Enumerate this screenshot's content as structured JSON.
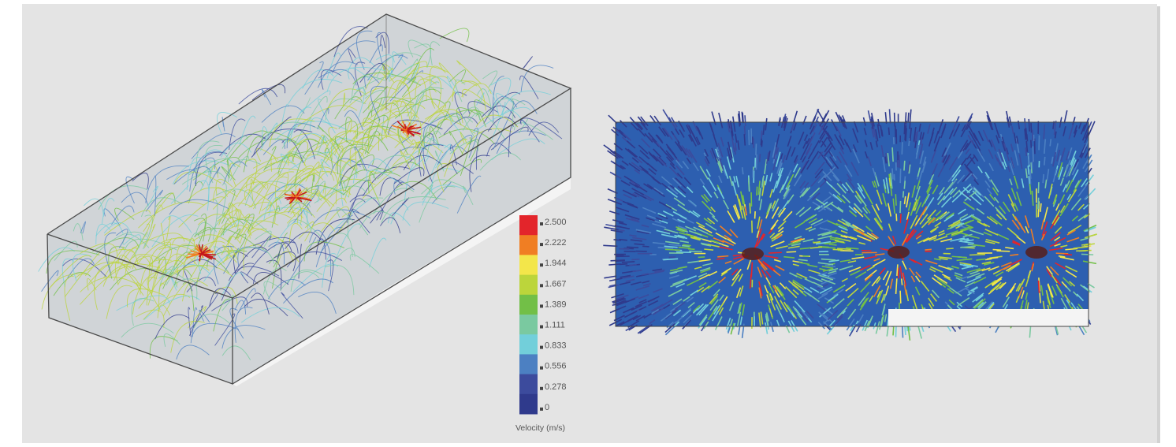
{
  "legend": {
    "title": "Velocity (m/s)",
    "ticks": [
      "2.500",
      "2.222",
      "1.944",
      "1.667",
      "1.389",
      "1.111",
      "0.833",
      "0.556",
      "0.278",
      "0"
    ],
    "colors": [
      "#e3252b",
      "#f07e23",
      "#f3e64a",
      "#bcd53b",
      "#72bf47",
      "#7ac9a0",
      "#72cfda",
      "#4c80c2",
      "#3c4b9d",
      "#2f3a8c"
    ]
  }
}
